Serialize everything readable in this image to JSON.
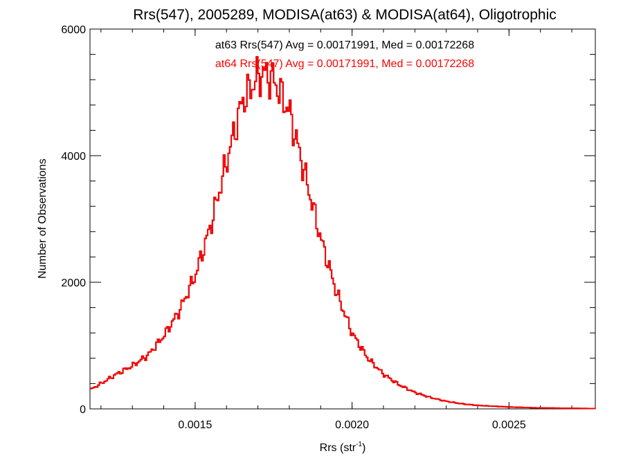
{
  "chart_data": {
    "type": "line",
    "title": "Rrs(547), 2005289, MODISA(at63) & MODISA(at64), Oligotrophic",
    "xlabel": "Rrs (str",
    "xlabel_sup": "-1",
    "xlabel_close": ")",
    "ylabel": "Number of Observations",
    "xlim": [
      0.001165,
      0.002775
    ],
    "ylim": [
      0,
      6000
    ],
    "xticks": [
      0.0015,
      0.002,
      0.0025
    ],
    "xtick_labels": [
      "0.0015",
      "0.0020",
      "0.0025"
    ],
    "xminor_step": 0.0001,
    "yticks": [
      0,
      2000,
      4000,
      6000
    ],
    "ytick_labels": [
      "0",
      "2000",
      "4000",
      "6000"
    ],
    "yminor_step": 400,
    "grid": false,
    "annotations": [
      {
        "text": "at63 Rrs(547) Avg = 0.00171991, Med = 0.00172268",
        "color": "#000000"
      },
      {
        "text": "at64 Rrs(547) Avg = 0.00171991, Med = 0.00172268",
        "color": "#ff0000"
      }
    ],
    "series": [
      {
        "style": "step",
        "color": "#000000",
        "x": [
          0.001165,
          0.0012,
          0.00125,
          0.0013,
          0.00135,
          0.0014,
          0.00145,
          0.0015,
          0.00155,
          0.0016,
          0.00165,
          0.0017,
          0.00172,
          0.00175,
          0.0018,
          0.00185,
          0.0019,
          0.00195,
          0.002,
          0.00205,
          0.0021,
          0.00215,
          0.0022,
          0.00225,
          0.0023,
          0.00235,
          0.0024,
          0.0025,
          0.0026,
          0.002775
        ],
        "y": [
          300,
          400,
          550,
          680,
          850,
          1150,
          1550,
          2100,
          2900,
          3900,
          4850,
          5250,
          5300,
          5200,
          4700,
          3700,
          2700,
          1850,
          1200,
          800,
          550,
          380,
          260,
          180,
          120,
          80,
          55,
          30,
          15,
          5
        ]
      },
      {
        "style": "step",
        "color": "#ff0000",
        "x": [
          0.001165,
          0.0012,
          0.00125,
          0.0013,
          0.00135,
          0.0014,
          0.00145,
          0.0015,
          0.00155,
          0.0016,
          0.00165,
          0.0017,
          0.00172,
          0.00175,
          0.0018,
          0.00185,
          0.0019,
          0.00195,
          0.002,
          0.00205,
          0.0021,
          0.00215,
          0.0022,
          0.00225,
          0.0023,
          0.00235,
          0.0024,
          0.0025,
          0.0026,
          0.002775
        ],
        "y": [
          300,
          400,
          550,
          680,
          850,
          1150,
          1550,
          2100,
          2900,
          3900,
          4850,
          5250,
          5300,
          5200,
          4700,
          3700,
          2700,
          1850,
          1200,
          800,
          550,
          380,
          260,
          180,
          120,
          80,
          55,
          30,
          15,
          5
        ]
      }
    ]
  },
  "colors": {
    "axis": "#000000",
    "at63": "#000000",
    "at64": "#ff0000"
  }
}
